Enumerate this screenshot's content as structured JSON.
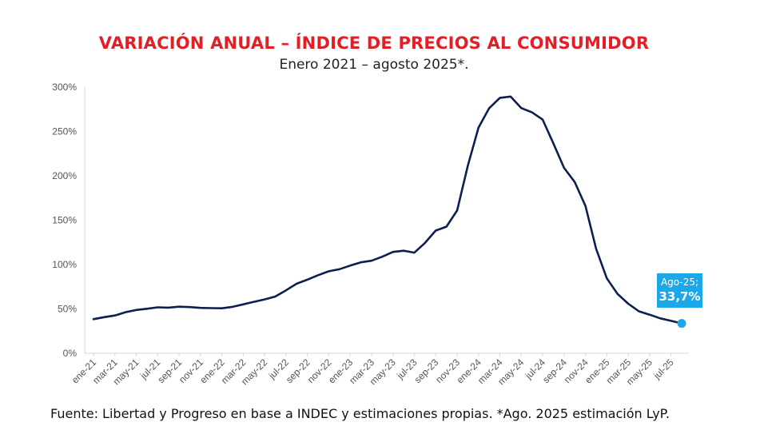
{
  "title": "VARIACIÓN ANUAL – ÍNDICE DE PRECIOS AL CONSUMIDOR",
  "subtitle": "Enero 2021 – agosto 2025*.",
  "source": "Fuente: Libertad y Progreso en base a INDEC y estimaciones propias. *Ago. 2025 estimación LyP.",
  "callout": {
    "label": "Ago-25;",
    "value": "33,7%"
  },
  "colors": {
    "title": "#e31e24",
    "line": "#0d1f4f",
    "marker": "#1ea7e6",
    "axis": "#d9d9d9"
  },
  "chart_data": {
    "type": "line",
    "ylim": [
      0,
      300
    ],
    "y_ticks": [
      "0%",
      "50%",
      "100%",
      "150%",
      "200%",
      "250%",
      "300%"
    ],
    "x_tick_labels": [
      "ene-21",
      "mar-21",
      "may-21",
      "jul-21",
      "sep-21",
      "nov-21",
      "ene-22",
      "mar-22",
      "may-22",
      "jul-22",
      "sep-22",
      "nov-22",
      "ene-23",
      "mar-23",
      "may-23",
      "jul-23",
      "sep-23",
      "nov-23",
      "ene-24",
      "mar-24",
      "may-24",
      "jul-24",
      "sep-24",
      "nov-24",
      "ene-25",
      "mar-25",
      "may-25",
      "jul-25"
    ],
    "x": [
      "ene-21",
      "feb-21",
      "mar-21",
      "abr-21",
      "may-21",
      "jun-21",
      "jul-21",
      "ago-21",
      "sep-21",
      "oct-21",
      "nov-21",
      "dic-21",
      "ene-22",
      "feb-22",
      "mar-22",
      "abr-22",
      "may-22",
      "jun-22",
      "jul-22",
      "ago-22",
      "sep-22",
      "oct-22",
      "nov-22",
      "dic-22",
      "ene-23",
      "feb-23",
      "mar-23",
      "abr-23",
      "may-23",
      "jun-23",
      "jul-23",
      "ago-23",
      "sep-23",
      "oct-23",
      "nov-23",
      "dic-23",
      "ene-24",
      "feb-24",
      "mar-24",
      "abr-24",
      "may-24",
      "jun-24",
      "jul-24",
      "ago-24",
      "sep-24",
      "oct-24",
      "nov-24",
      "dic-24",
      "ene-25",
      "feb-25",
      "mar-25",
      "abr-25",
      "may-25",
      "jun-25",
      "jul-25",
      "ago-25"
    ],
    "values": [
      38.5,
      40.7,
      42.6,
      46.3,
      48.8,
      50.2,
      51.8,
      51.4,
      52.5,
      52.1,
      51.2,
      50.9,
      50.7,
      52.3,
      55.1,
      58.0,
      60.7,
      64.0,
      71.0,
      78.5,
      83.0,
      88.0,
      92.4,
      94.8,
      98.8,
      102.5,
      104.3,
      108.8,
      114.2,
      115.6,
      113.4,
      124.4,
      138.3,
      142.7,
      160.9,
      211.4,
      254.2,
      276.2,
      287.9,
      289.4,
      276.4,
      271.5,
      263.4,
      236.7,
      209.0,
      193.0,
      166.0,
      117.8,
      84.5,
      66.9,
      55.9,
      47.3,
      43.5,
      39.4,
      36.6,
      33.7
    ],
    "highlight": {
      "x": "ago-25",
      "y": 33.7
    },
    "grid": false,
    "xlabel": "",
    "ylabel": ""
  }
}
